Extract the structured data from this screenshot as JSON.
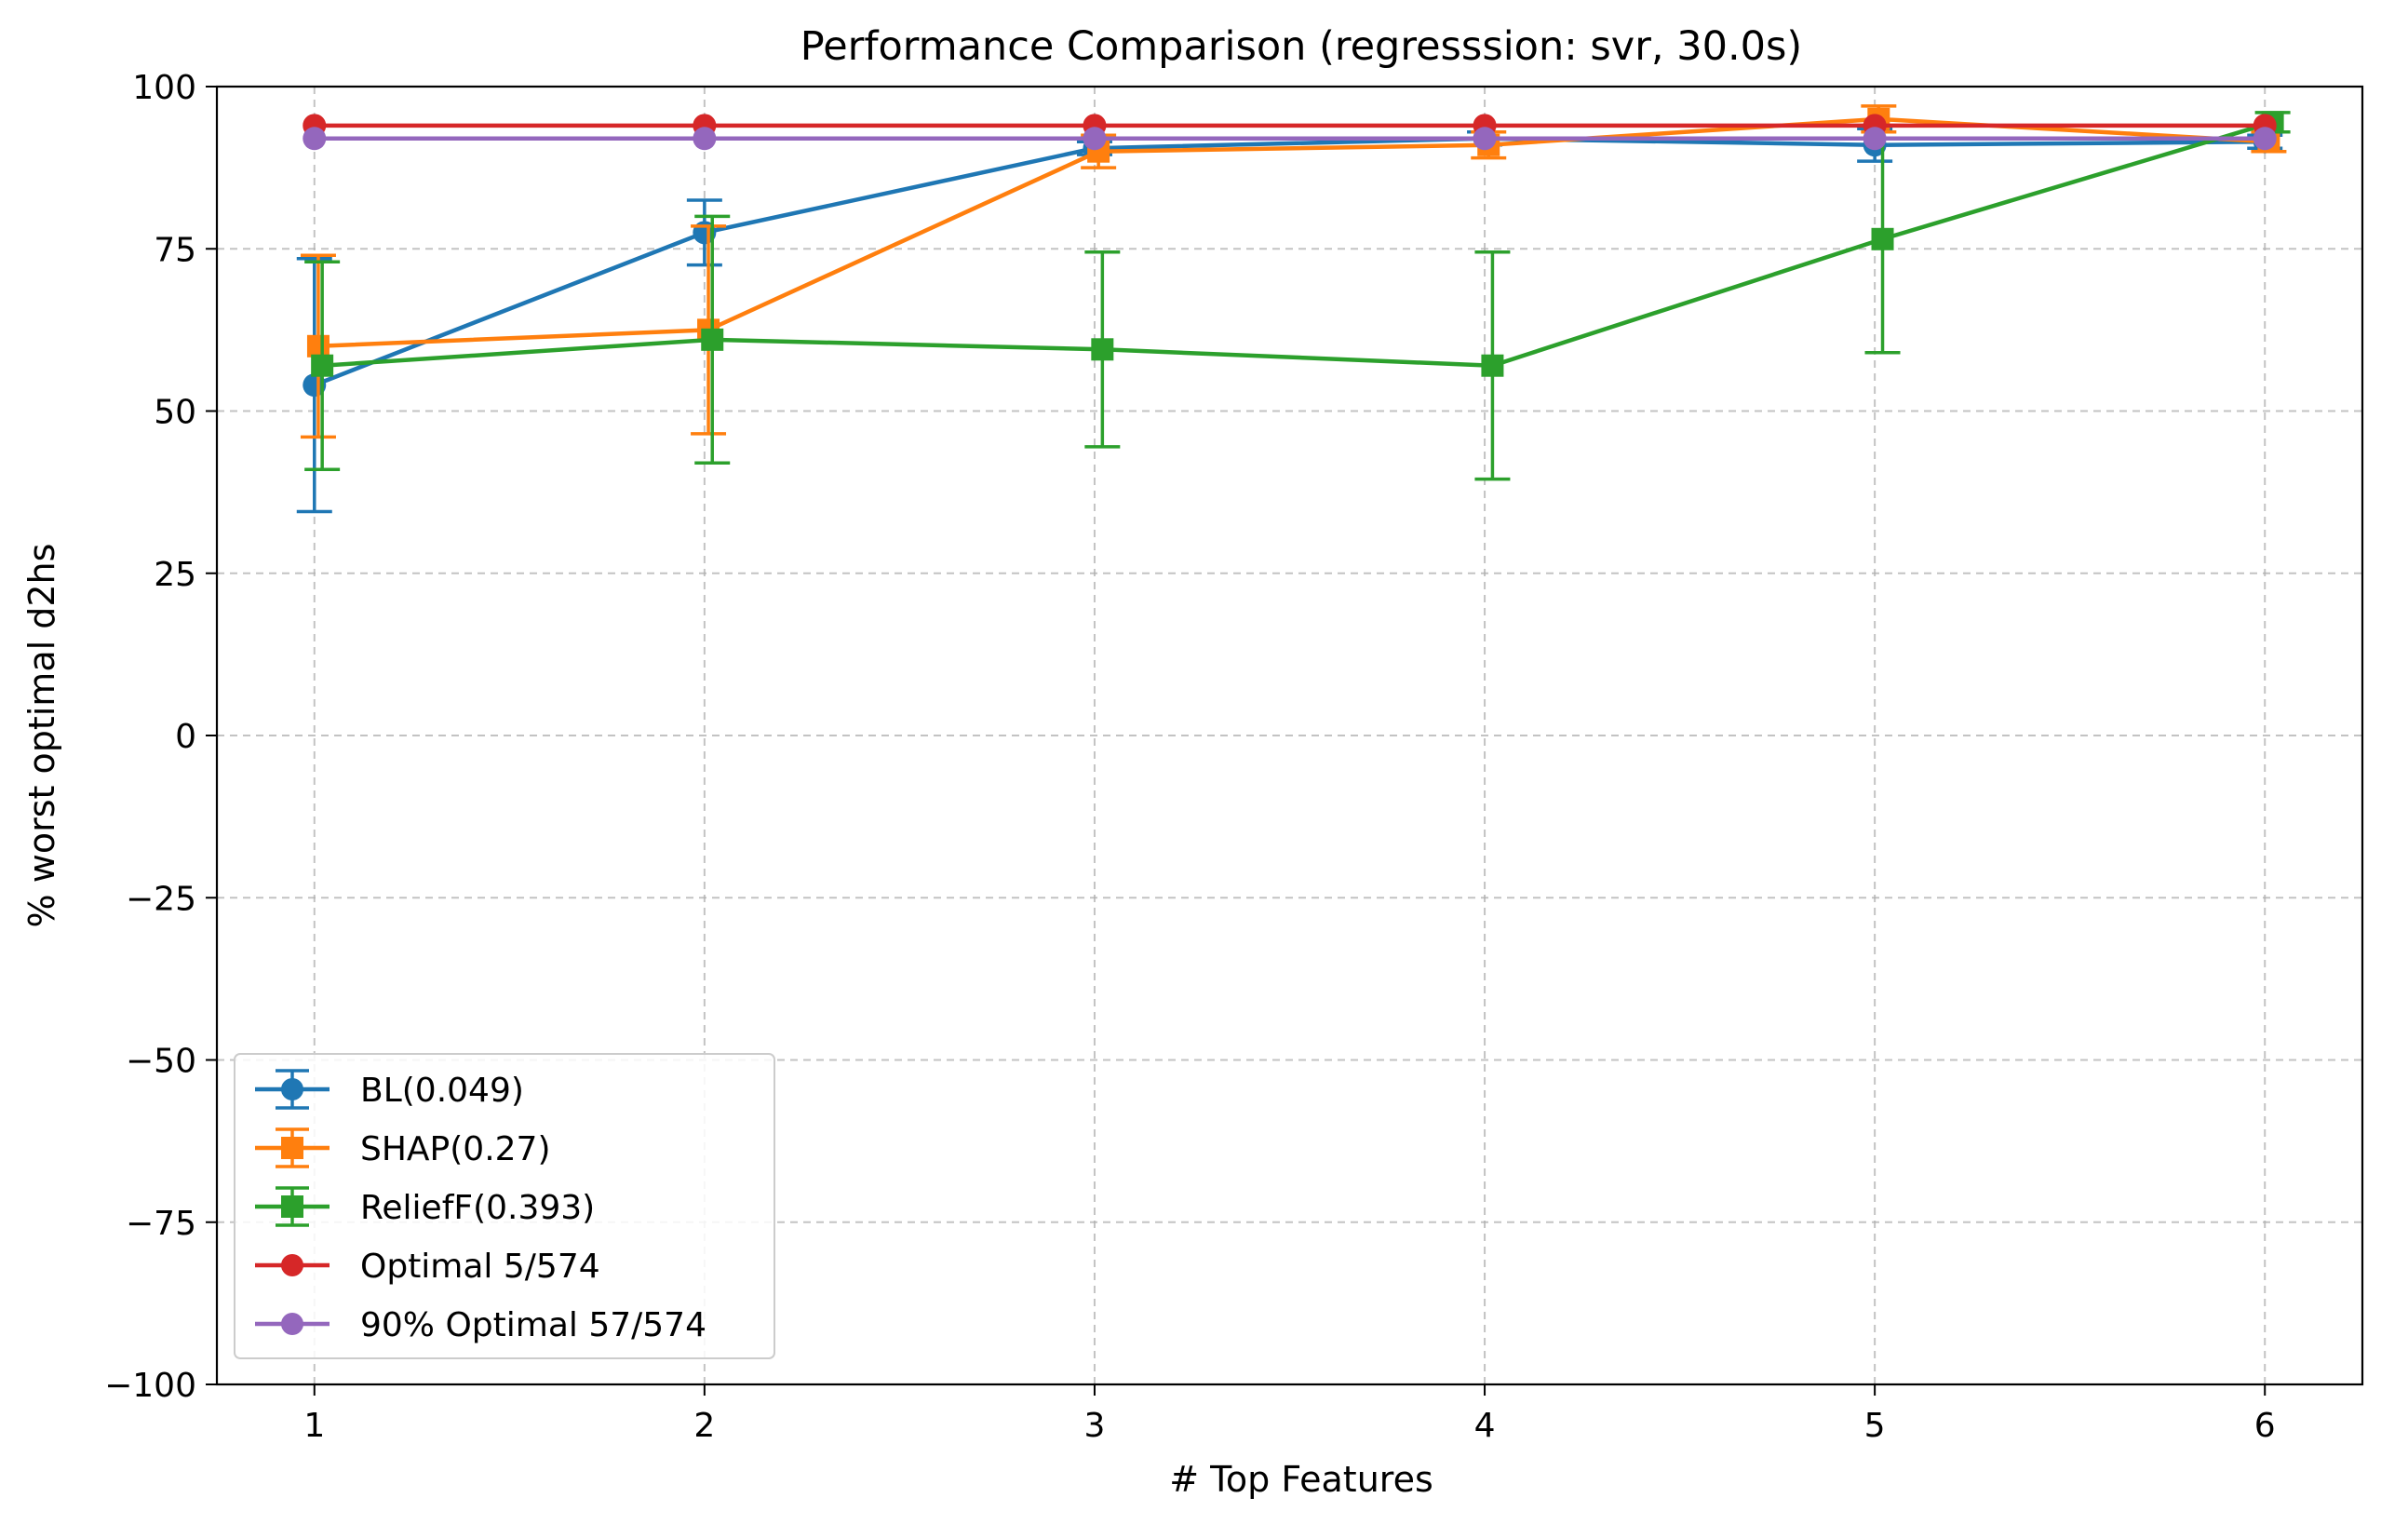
{
  "chart_data": {
    "type": "line",
    "title": "Performance Comparison (regresssion: svr, 30.0s)",
    "xlabel": "# Top Features",
    "ylabel": "% worst optimal d2hs",
    "x": [
      1,
      2,
      3,
      4,
      5,
      6
    ],
    "xlim": [
      0.75,
      6.25
    ],
    "ylim": [
      -100,
      100
    ],
    "xticks": [
      "1",
      "2",
      "3",
      "4",
      "5",
      "6"
    ],
    "yticks": [
      -100,
      -75,
      -50,
      -25,
      0,
      25,
      50,
      75,
      100
    ],
    "ytick_labels": [
      "−100",
      "−75",
      "−50",
      "−25",
      "0",
      "25",
      "50",
      "75",
      "100"
    ],
    "grid": true,
    "legend_position": "lower-left",
    "series": [
      {
        "name": "BL(0.049)",
        "color": "#1f77b4",
        "marker": "circle",
        "values": [
          54,
          77.5,
          90.5,
          92,
          91,
          91.5
        ],
        "errors": [
          19.5,
          5,
          1,
          1,
          2.5,
          1
        ],
        "x_offset": 0
      },
      {
        "name": "SHAP(0.27)",
        "color": "#ff7f0e",
        "marker": "square",
        "values": [
          60,
          62.5,
          90,
          91,
          95,
          91.5
        ],
        "errors": [
          14,
          16,
          2.5,
          2,
          2,
          1.5
        ],
        "x_offset": 0.01
      },
      {
        "name": "ReliefF(0.393)",
        "color": "#2ca02c",
        "marker": "square",
        "values": [
          57,
          61,
          59.5,
          57,
          76.5,
          94.5
        ],
        "errors": [
          16,
          19,
          15,
          17.5,
          17.5,
          1.5
        ],
        "x_offset": 0.02
      },
      {
        "name": "Optimal 5/574",
        "color": "#d62728",
        "marker": "circle",
        "values": [
          94,
          94,
          94,
          94,
          94,
          94
        ],
        "errors": null,
        "x_offset": 0
      },
      {
        "name": "90% Optimal 57/574",
        "color": "#9467bd",
        "marker": "circle",
        "values": [
          92,
          92,
          92,
          92,
          92,
          92
        ],
        "errors": null,
        "x_offset": 0
      }
    ]
  }
}
